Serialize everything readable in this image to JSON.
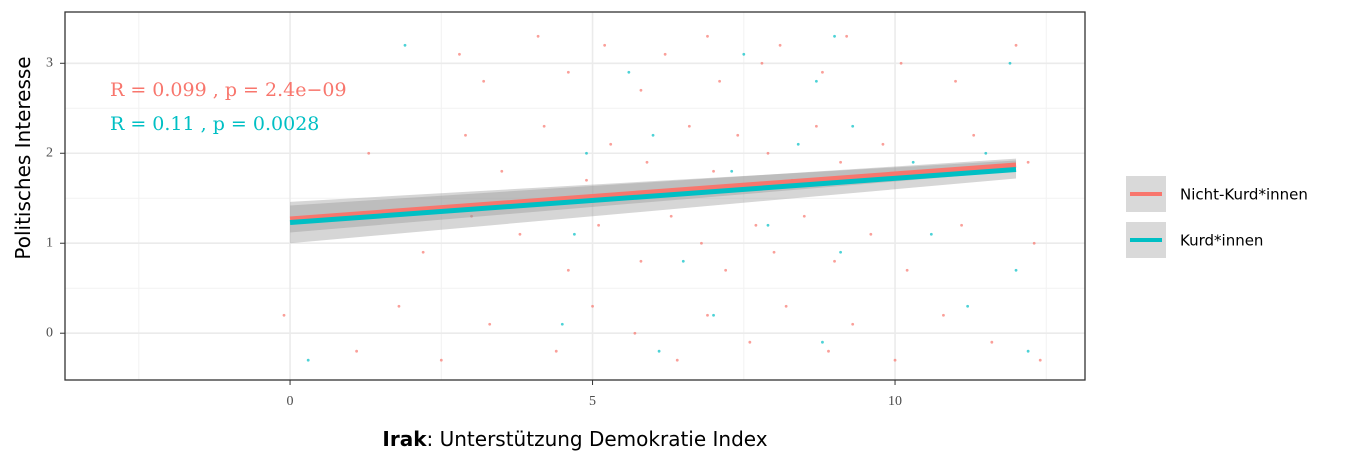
{
  "chart_data": {
    "type": "scatter",
    "x_label_bold": "Irak",
    "x_label": ": Unterstützung Demokratie Index",
    "y_label": "Politisches Interesse",
    "xlim": [
      -3.72,
      13.14
    ],
    "ylim": [
      -0.52,
      3.57
    ],
    "xticks": [
      0,
      5,
      10
    ],
    "yticks": [
      0,
      1,
      2,
      3
    ],
    "xminor": [
      -2.5,
      2.5,
      7.5,
      12.5
    ],
    "yminor": [
      0.5,
      1.5,
      2.5
    ],
    "grid": true,
    "legend": "right",
    "annotations": [
      "R = 0.099 , p = 2.4e−09",
      "R = 0.11 , p = 0.0028"
    ],
    "series": [
      {
        "name": "Nicht-Kurd*innen",
        "color": "#F8766D",
        "x": [
          2.8,
          3.2,
          4.1,
          4.6,
          5.2,
          5.8,
          6.2,
          6.9,
          7.1,
          7.8,
          8.1,
          8.8,
          9.2,
          10.1,
          11.0,
          12.0,
          1.3,
          2.9,
          3.5,
          4.2,
          4.9,
          5.3,
          5.9,
          6.6,
          7.0,
          7.4,
          7.9,
          8.3,
          8.7,
          9.1,
          9.8,
          10.5,
          11.3,
          12.2,
          2.2,
          3.0,
          3.8,
          4.6,
          5.1,
          5.8,
          6.3,
          6.8,
          7.2,
          7.7,
          8.0,
          8.5,
          9.0,
          9.6,
          10.2,
          11.1,
          12.3,
          -0.1,
          1.1,
          1.8,
          2.5,
          3.3,
          4.4,
          5.0,
          5.7,
          6.4,
          6.9,
          7.6,
          8.2,
          8.9,
          9.3,
          10.0,
          10.8,
          11.6,
          12.4
        ],
        "values": [
          3.1,
          2.8,
          3.3,
          2.9,
          3.2,
          2.7,
          3.1,
          3.3,
          2.8,
          3.0,
          3.2,
          2.9,
          3.3,
          3.0,
          2.8,
          3.2,
          2.0,
          2.2,
          1.8,
          2.3,
          1.7,
          2.1,
          1.9,
          2.3,
          1.8,
          2.2,
          2.0,
          1.7,
          2.3,
          1.9,
          2.1,
          1.8,
          2.2,
          1.9,
          0.9,
          1.3,
          1.1,
          0.7,
          1.2,
          0.8,
          1.3,
          1.0,
          0.7,
          1.2,
          0.9,
          1.3,
          0.8,
          1.1,
          0.7,
          1.2,
          1.0,
          0.2,
          -0.2,
          0.3,
          -0.3,
          0.1,
          -0.2,
          0.3,
          0.0,
          -0.3,
          0.2,
          -0.1,
          0.3,
          -0.2,
          0.1,
          -0.3,
          0.2,
          -0.1,
          -0.3
        ],
        "fit": {
          "x": [
            0,
            12
          ],
          "values": [
            1.27,
            1.87
          ],
          "lower": [
            1.12,
            1.8
          ],
          "upper": [
            1.42,
            1.94
          ]
        }
      },
      {
        "name": "Kurd*innen",
        "color": "#00BFC4",
        "x": [
          1.9,
          5.6,
          7.5,
          8.7,
          9.0,
          11.9,
          0.3,
          4.9,
          6.0,
          7.3,
          8.4,
          9.3,
          10.3,
          11.5,
          4.7,
          6.5,
          7.9,
          9.1,
          10.6,
          12.0,
          4.5,
          6.1,
          7.0,
          8.8,
          11.2,
          12.2
        ],
        "values": [
          3.2,
          2.9,
          3.1,
          2.8,
          3.3,
          3.0,
          -0.3,
          2.0,
          2.2,
          1.8,
          2.1,
          2.3,
          1.9,
          2.0,
          1.1,
          0.8,
          1.2,
          0.9,
          1.1,
          0.7,
          0.1,
          -0.2,
          0.2,
          -0.1,
          0.3,
          -0.2
        ],
        "fit": {
          "x": [
            0,
            12
          ],
          "values": [
            1.23,
            1.82
          ],
          "lower": [
            1.0,
            1.72
          ],
          "upper": [
            1.46,
            1.92
          ]
        }
      }
    ]
  }
}
